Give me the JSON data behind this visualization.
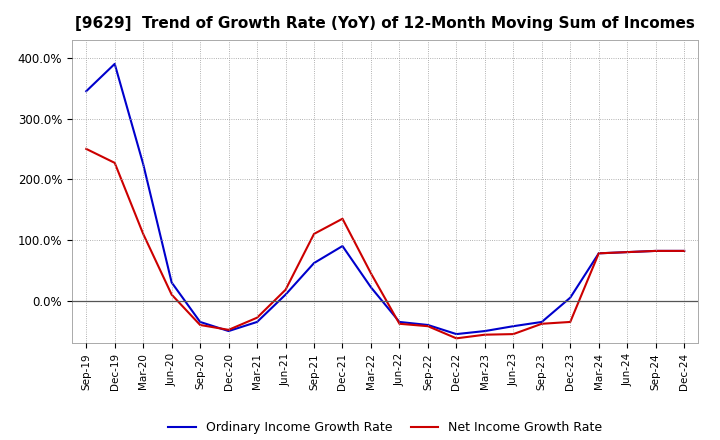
{
  "title": "[9629]  Trend of Growth Rate (YoY) of 12-Month Moving Sum of Incomes",
  "x_labels": [
    "Sep-19",
    "Dec-19",
    "Mar-20",
    "Jun-20",
    "Sep-20",
    "Dec-20",
    "Mar-21",
    "Jun-21",
    "Sep-21",
    "Dec-21",
    "Mar-22",
    "Jun-22",
    "Sep-22",
    "Dec-22",
    "Mar-23",
    "Jun-23",
    "Sep-23",
    "Dec-23",
    "Mar-24",
    "Jun-24",
    "Sep-24",
    "Dec-24"
  ],
  "ordinary_income": [
    3.45,
    3.9,
    2.25,
    0.3,
    -0.35,
    -0.5,
    -0.35,
    0.1,
    0.62,
    0.9,
    0.22,
    -0.35,
    -0.4,
    -0.55,
    -0.5,
    -0.42,
    -0.35,
    0.05,
    0.78,
    0.8,
    0.82,
    0.82
  ],
  "net_income": [
    2.5,
    2.27,
    1.1,
    0.1,
    -0.4,
    -0.48,
    -0.28,
    0.18,
    1.1,
    1.35,
    0.45,
    -0.38,
    -0.42,
    -0.62,
    -0.56,
    -0.55,
    -0.38,
    -0.35,
    0.78,
    0.8,
    0.82,
    0.82
  ],
  "ordinary_color": "#0000CC",
  "net_color": "#CC0000",
  "background_color": "#FFFFFF",
  "grid_color": "#999999",
  "legend_ordinary": "Ordinary Income Growth Rate",
  "legend_net": "Net Income Growth Rate"
}
